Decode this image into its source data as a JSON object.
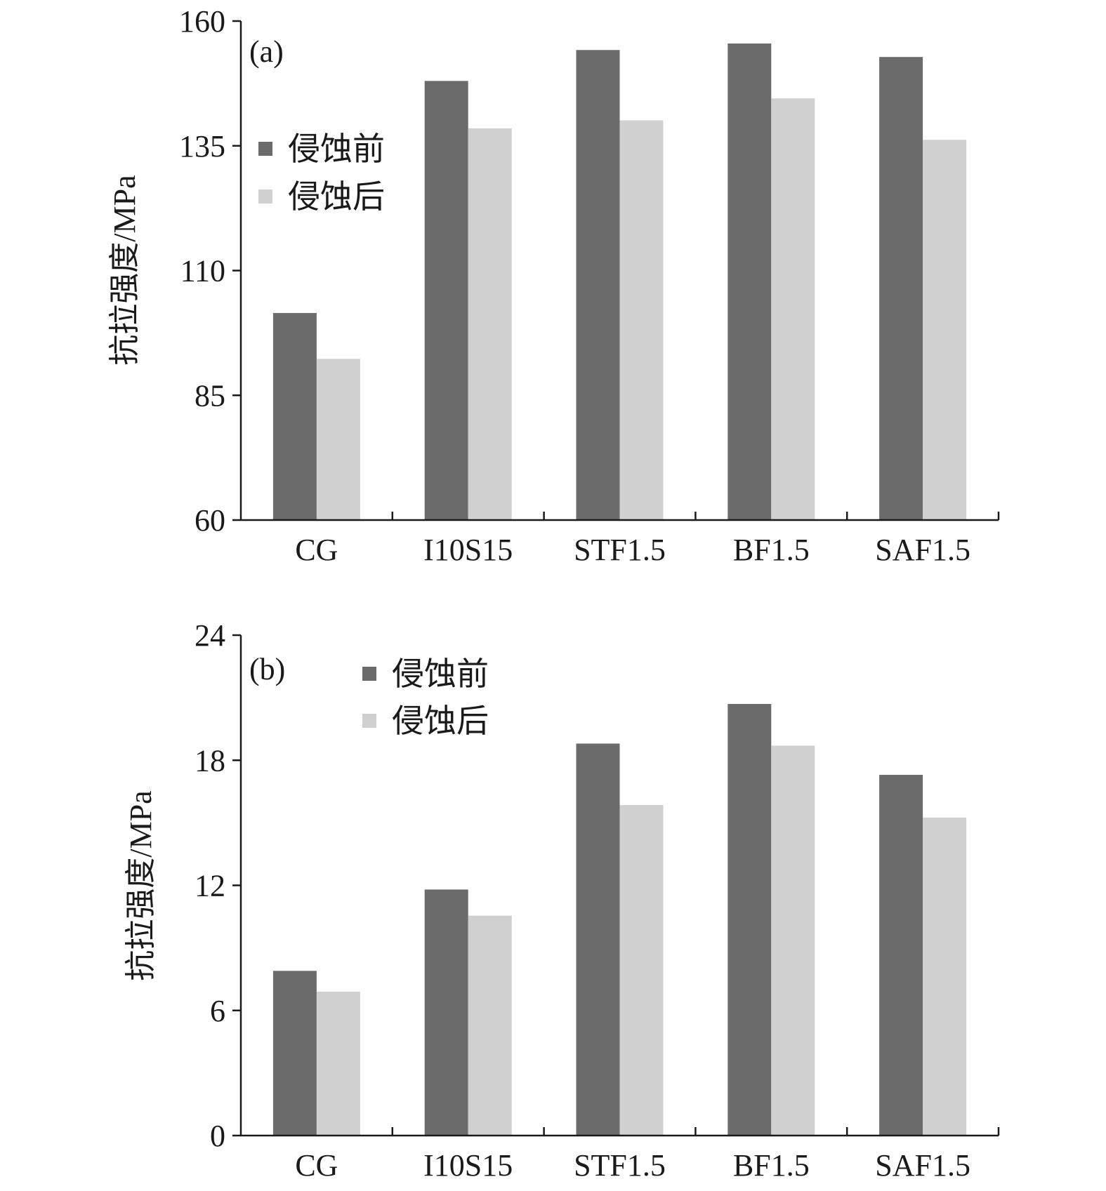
{
  "chart_data": [
    {
      "type": "bar",
      "panel_label": "(a)",
      "categories": [
        "CG",
        "I10S15",
        "STF1.5",
        "BF1.5",
        "SAF1.5"
      ],
      "series": [
        {
          "name": "侵蚀前",
          "color": "#6b6b6b",
          "values": [
            101.5,
            148,
            154.2,
            155.5,
            152.8
          ]
        },
        {
          "name": "侵蚀后",
          "color": "#d0d0d0",
          "values": [
            92.3,
            138.5,
            140.1,
            144.5,
            136.2
          ]
        }
      ],
      "ylabel": "抗拉强度/MPa",
      "ylim": [
        60,
        160
      ],
      "yticks": [
        60,
        85,
        110,
        135,
        160
      ],
      "legend_position": "top-left"
    },
    {
      "type": "bar",
      "panel_label": "(b)",
      "categories": [
        "CG",
        "I10S15",
        "STF1.5",
        "BF1.5",
        "SAF1.5"
      ],
      "series": [
        {
          "name": "侵蚀前",
          "color": "#6b6b6b",
          "values": [
            7.9,
            11.8,
            18.8,
            20.7,
            17.3
          ]
        },
        {
          "name": "侵蚀后",
          "color": "#d0d0d0",
          "values": [
            6.9,
            10.55,
            15.85,
            18.7,
            15.25
          ]
        }
      ],
      "ylabel": "抗拉强度/MPa",
      "ylim": [
        0,
        24
      ],
      "yticks": [
        0,
        6,
        12,
        18,
        24
      ],
      "legend_position": "top-left"
    }
  ]
}
